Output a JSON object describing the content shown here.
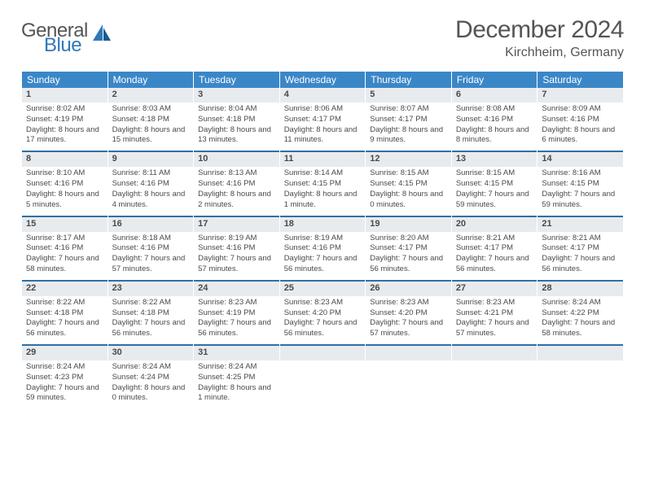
{
  "brand": {
    "line1": "General",
    "line2": "Blue"
  },
  "title": "December 2024",
  "location": "Kirchheim, Germany",
  "colors": {
    "header_bg": "#3a87c8",
    "row_divider": "#2f6fa8",
    "daynum_bg": "#e8ebee",
    "text": "#4a4a4a",
    "brand_blue": "#2f78b8"
  },
  "typography": {
    "title_fontsize": 30,
    "location_fontsize": 16,
    "weekday_fontsize": 12,
    "daynum_fontsize": 11,
    "body_fontsize": 9.5
  },
  "weekdays": [
    "Sunday",
    "Monday",
    "Tuesday",
    "Wednesday",
    "Thursday",
    "Friday",
    "Saturday"
  ],
  "grid": [
    [
      {
        "n": "1",
        "sr": "8:02 AM",
        "ss": "4:19 PM",
        "dl": "8 hours and 17 minutes."
      },
      {
        "n": "2",
        "sr": "8:03 AM",
        "ss": "4:18 PM",
        "dl": "8 hours and 15 minutes."
      },
      {
        "n": "3",
        "sr": "8:04 AM",
        "ss": "4:18 PM",
        "dl": "8 hours and 13 minutes."
      },
      {
        "n": "4",
        "sr": "8:06 AM",
        "ss": "4:17 PM",
        "dl": "8 hours and 11 minutes."
      },
      {
        "n": "5",
        "sr": "8:07 AM",
        "ss": "4:17 PM",
        "dl": "8 hours and 9 minutes."
      },
      {
        "n": "6",
        "sr": "8:08 AM",
        "ss": "4:16 PM",
        "dl": "8 hours and 8 minutes."
      },
      {
        "n": "7",
        "sr": "8:09 AM",
        "ss": "4:16 PM",
        "dl": "8 hours and 6 minutes."
      }
    ],
    [
      {
        "n": "8",
        "sr": "8:10 AM",
        "ss": "4:16 PM",
        "dl": "8 hours and 5 minutes."
      },
      {
        "n": "9",
        "sr": "8:11 AM",
        "ss": "4:16 PM",
        "dl": "8 hours and 4 minutes."
      },
      {
        "n": "10",
        "sr": "8:13 AM",
        "ss": "4:16 PM",
        "dl": "8 hours and 2 minutes."
      },
      {
        "n": "11",
        "sr": "8:14 AM",
        "ss": "4:15 PM",
        "dl": "8 hours and 1 minute."
      },
      {
        "n": "12",
        "sr": "8:15 AM",
        "ss": "4:15 PM",
        "dl": "8 hours and 0 minutes."
      },
      {
        "n": "13",
        "sr": "8:15 AM",
        "ss": "4:15 PM",
        "dl": "7 hours and 59 minutes."
      },
      {
        "n": "14",
        "sr": "8:16 AM",
        "ss": "4:15 PM",
        "dl": "7 hours and 59 minutes."
      }
    ],
    [
      {
        "n": "15",
        "sr": "8:17 AM",
        "ss": "4:16 PM",
        "dl": "7 hours and 58 minutes."
      },
      {
        "n": "16",
        "sr": "8:18 AM",
        "ss": "4:16 PM",
        "dl": "7 hours and 57 minutes."
      },
      {
        "n": "17",
        "sr": "8:19 AM",
        "ss": "4:16 PM",
        "dl": "7 hours and 57 minutes."
      },
      {
        "n": "18",
        "sr": "8:19 AM",
        "ss": "4:16 PM",
        "dl": "7 hours and 56 minutes."
      },
      {
        "n": "19",
        "sr": "8:20 AM",
        "ss": "4:17 PM",
        "dl": "7 hours and 56 minutes."
      },
      {
        "n": "20",
        "sr": "8:21 AM",
        "ss": "4:17 PM",
        "dl": "7 hours and 56 minutes."
      },
      {
        "n": "21",
        "sr": "8:21 AM",
        "ss": "4:17 PM",
        "dl": "7 hours and 56 minutes."
      }
    ],
    [
      {
        "n": "22",
        "sr": "8:22 AM",
        "ss": "4:18 PM",
        "dl": "7 hours and 56 minutes."
      },
      {
        "n": "23",
        "sr": "8:22 AM",
        "ss": "4:18 PM",
        "dl": "7 hours and 56 minutes."
      },
      {
        "n": "24",
        "sr": "8:23 AM",
        "ss": "4:19 PM",
        "dl": "7 hours and 56 minutes."
      },
      {
        "n": "25",
        "sr": "8:23 AM",
        "ss": "4:20 PM",
        "dl": "7 hours and 56 minutes."
      },
      {
        "n": "26",
        "sr": "8:23 AM",
        "ss": "4:20 PM",
        "dl": "7 hours and 57 minutes."
      },
      {
        "n": "27",
        "sr": "8:23 AM",
        "ss": "4:21 PM",
        "dl": "7 hours and 57 minutes."
      },
      {
        "n": "28",
        "sr": "8:24 AM",
        "ss": "4:22 PM",
        "dl": "7 hours and 58 minutes."
      }
    ],
    [
      {
        "n": "29",
        "sr": "8:24 AM",
        "ss": "4:23 PM",
        "dl": "7 hours and 59 minutes."
      },
      {
        "n": "30",
        "sr": "8:24 AM",
        "ss": "4:24 PM",
        "dl": "8 hours and 0 minutes."
      },
      {
        "n": "31",
        "sr": "8:24 AM",
        "ss": "4:25 PM",
        "dl": "8 hours and 1 minute."
      },
      null,
      null,
      null,
      null
    ]
  ],
  "labels": {
    "sunrise": "Sunrise:",
    "sunset": "Sunset:",
    "daylight": "Daylight:"
  }
}
